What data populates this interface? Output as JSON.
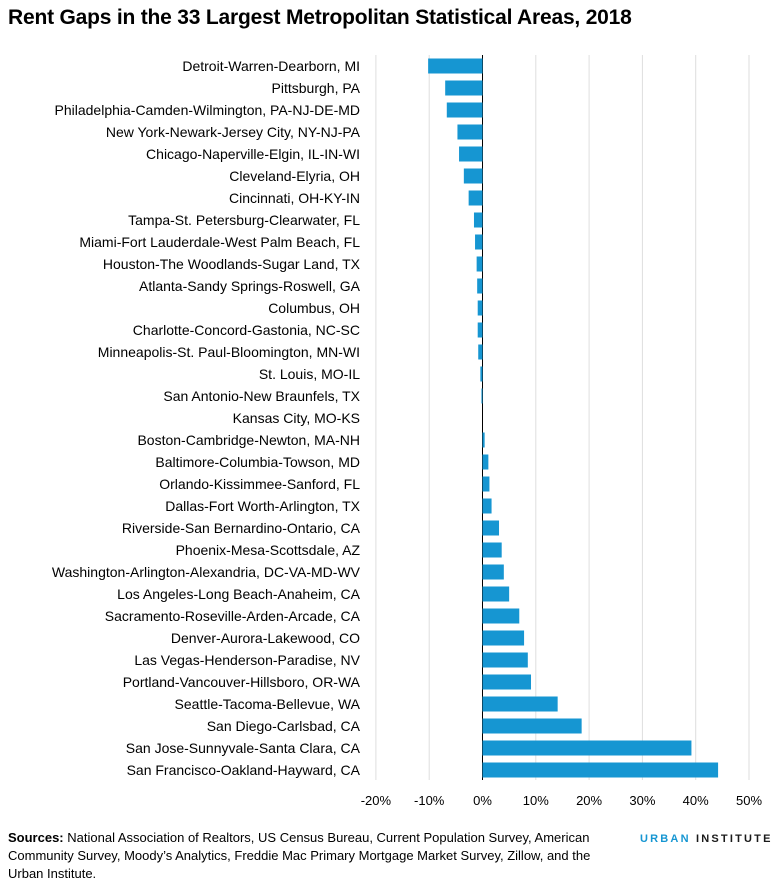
{
  "title": "Rent Gaps in the 33 Largest Metropolitan Statistical Areas, 2018",
  "source_label": "Sources:",
  "source_text": "National Association of Realtors, US Census Bureau, Current Population Survey, American Community Survey, Moody’s Analytics, Freddie Mac Primary Mortgage Market Survey, Zillow, and the Urban Institute.",
  "brand": {
    "word1": "URBAN",
    "word2": "INSTITUTE"
  },
  "colors": {
    "bar": "#1696d2",
    "grid": "#dedede",
    "axis": "#000000"
  },
  "chart_data": {
    "type": "bar",
    "orientation": "horizontal",
    "title": "Rent Gaps in the 33 Largest Metropolitan Statistical Areas, 2018",
    "xlabel": "",
    "ylabel": "",
    "xlim": [
      -20,
      50
    ],
    "grid": true,
    "ticks": [
      -20,
      -10,
      0,
      10,
      20,
      30,
      40,
      50
    ],
    "tick_labels": [
      "-20%",
      "-10%",
      "0%",
      "10%",
      "20%",
      "30%",
      "40%",
      "50%"
    ],
    "categories": [
      "Detroit-Warren-Dearborn, MI",
      "Pittsburgh, PA",
      "Philadelphia-Camden-Wilmington, PA-NJ-DE-MD",
      "New York-Newark-Jersey City, NY-NJ-PA",
      "Chicago-Naperville-Elgin, IL-IN-WI",
      "Cleveland-Elyria, OH",
      "Cincinnati, OH-KY-IN",
      "Tampa-St. Petersburg-Clearwater, FL",
      "Miami-Fort Lauderdale-West Palm Beach, FL",
      "Houston-The Woodlands-Sugar Land, TX",
      "Atlanta-Sandy Springs-Roswell, GA",
      "Columbus, OH",
      "Charlotte-Concord-Gastonia, NC-SC",
      "Minneapolis-St. Paul-Bloomington, MN-WI",
      "St. Louis, MO-IL",
      "San Antonio-New Braunfels, TX",
      "Kansas City, MO-KS",
      "Boston-Cambridge-Newton, MA-NH",
      "Baltimore-Columbia-Towson, MD",
      "Orlando-Kissimmee-Sanford, FL",
      "Dallas-Fort Worth-Arlington, TX",
      "Riverside-San Bernardino-Ontario, CA",
      "Phoenix-Mesa-Scottsdale, AZ",
      "Washington-Arlington-Alexandria, DC-VA-MD-WV",
      "Los Angeles-Long Beach-Anaheim, CA",
      "Sacramento-Roseville-Arden-Arcade, CA",
      "Denver-Aurora-Lakewood, CO",
      "Las Vegas-Henderson-Paradise, NV",
      "Portland-Vancouver-Hillsboro, OR-WA",
      "Seattle-Tacoma-Bellevue, WA",
      "San Diego-Carlsbad, CA",
      "San Jose-Sunnyvale-Santa Clara, CA",
      "San Francisco-Oakland-Hayward, CA"
    ],
    "values": [
      -10.2,
      -7.0,
      -6.7,
      -4.7,
      -4.4,
      -3.5,
      -2.6,
      -1.6,
      -1.4,
      -1.1,
      -1.0,
      -0.9,
      -0.9,
      -0.8,
      -0.4,
      -0.2,
      0.0,
      0.4,
      1.1,
      1.3,
      1.7,
      3.1,
      3.6,
      4.0,
      5.0,
      6.9,
      7.8,
      8.5,
      9.1,
      14.1,
      18.6,
      39.2,
      44.2
    ]
  }
}
